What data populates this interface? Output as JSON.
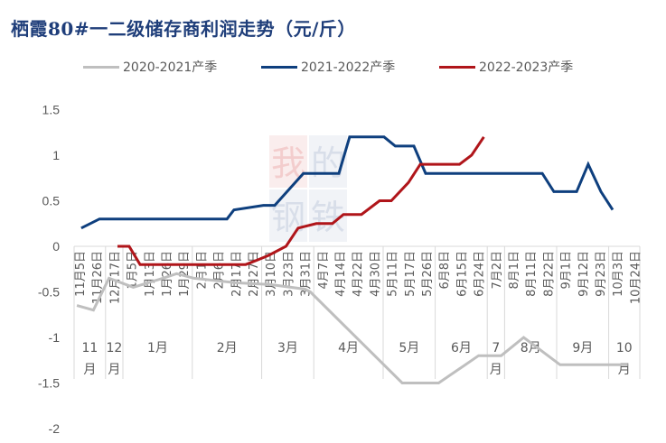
{
  "title": "栖霞80#一二级储存商利润走势（元/斤）",
  "legend": [
    {
      "label": "2020-2021产季",
      "color": "#bfbfbf"
    },
    {
      "label": "2021-2022产季",
      "color": "#0e3f7e"
    },
    {
      "label": "2022-2023产季",
      "color": "#b0151a"
    }
  ],
  "chart_data": {
    "type": "line",
    "title": "栖霞80#一二级储存商利润走势（元/斤）",
    "xlabel": "",
    "ylabel": "元/斤",
    "ylim": [
      -2,
      1.5
    ],
    "yticks": [
      1.5,
      1,
      0.5,
      0,
      -0.5,
      -1,
      -1.5,
      -2
    ],
    "ytick_labels": [
      "1.5",
      "1",
      "0.5",
      "0",
      "-0.5",
      "-1",
      "-1.5",
      "-2"
    ],
    "grid": false,
    "legend_position": "top",
    "categories": [
      "11月5日",
      "11月26日",
      "12月17日",
      "1月5日",
      "1月13日",
      "1月26日",
      "1月29日",
      "2月1日",
      "2月6日",
      "2月17日",
      "2月27日",
      "3月10日",
      "3月23日",
      "3月31日",
      "4月7日",
      "4月14日",
      "4月22日",
      "4月30日",
      "5月11日",
      "5月17日",
      "5月26日",
      "6月8日",
      "6月15日",
      "6月24日",
      "7月2日",
      "8月1日",
      "8月11日",
      "8月22日",
      "9月1日",
      "9月12日",
      "9月23日",
      "10月3日",
      "10月24日"
    ],
    "month_groups": [
      {
        "label": "11月",
        "from": 0,
        "to": 1
      },
      {
        "label": "12月",
        "from": 2,
        "to": 2
      },
      {
        "label": "1月",
        "from": 3,
        "to": 6
      },
      {
        "label": "2月",
        "from": 7,
        "to": 10
      },
      {
        "label": "3月",
        "from": 11,
        "to": 13
      },
      {
        "label": "4月",
        "from": 14,
        "to": 17
      },
      {
        "label": "5月",
        "from": 18,
        "to": 20
      },
      {
        "label": "6月",
        "from": 21,
        "to": 23
      },
      {
        "label": "7月",
        "from": 24,
        "to": 24
      },
      {
        "label": "8月",
        "from": 25,
        "to": 27
      },
      {
        "label": "9月",
        "from": 28,
        "to": 30
      },
      {
        "label": "10月",
        "from": 31,
        "to": 32
      }
    ],
    "series": [
      {
        "name": "2020-2021产季",
        "color": "#bfbfbf",
        "points": [
          [
            -0.15,
            -0.65
          ],
          [
            0.8,
            -0.7
          ],
          [
            1.7,
            -0.35
          ],
          [
            3.1,
            -0.45
          ],
          [
            4.8,
            -0.35
          ],
          [
            5.6,
            -0.3
          ],
          [
            6.6,
            -0.35
          ],
          [
            9,
            -0.4
          ],
          [
            11,
            -0.42
          ],
          [
            13,
            -0.47
          ],
          [
            13.3,
            -0.5
          ],
          [
            18.6,
            -1.5
          ],
          [
            20.7,
            -1.5
          ],
          [
            23,
            -1.2
          ],
          [
            24.3,
            -1.2
          ],
          [
            25.6,
            -1.0
          ],
          [
            27.7,
            -1.3
          ],
          [
            31.6,
            -1.3
          ]
        ]
      },
      {
        "name": "2021-2022产季",
        "color": "#0e3f7e",
        "points": [
          [
            0.1,
            0.2
          ],
          [
            1.15,
            0.3
          ],
          [
            8.5,
            0.3
          ],
          [
            8.9,
            0.4
          ],
          [
            10.6,
            0.45
          ],
          [
            11.25,
            0.45
          ],
          [
            12.9,
            0.8
          ],
          [
            14.95,
            0.8
          ],
          [
            15.57,
            1.2
          ],
          [
            17.55,
            1.2
          ],
          [
            18.2,
            1.1
          ],
          [
            19.27,
            1.1
          ],
          [
            19.95,
            0.8
          ],
          [
            26.67,
            0.8
          ],
          [
            27.34,
            0.6
          ],
          [
            28.65,
            0.6
          ],
          [
            29.32,
            0.9
          ],
          [
            30.05,
            0.6
          ],
          [
            30.73,
            0.4
          ]
        ]
      },
      {
        "name": "2022-2023产季",
        "color": "#b0151a",
        "points": [
          [
            2.19,
            0
          ],
          [
            2.86,
            0
          ],
          [
            3.49,
            -0.2
          ],
          [
            9.58,
            -0.2
          ],
          [
            10.26,
            -0.15
          ],
          [
            10.89,
            -0.1
          ],
          [
            11.9,
            0
          ],
          [
            12.6,
            0.2
          ],
          [
            13.65,
            0.25
          ],
          [
            14.58,
            0.25
          ],
          [
            15.21,
            0.35
          ],
          [
            16.25,
            0.35
          ],
          [
            17.29,
            0.5
          ],
          [
            17.97,
            0.5
          ],
          [
            18.96,
            0.7
          ],
          [
            19.64,
            0.9
          ],
          [
            21.9,
            0.9
          ],
          [
            22.6,
            1.0
          ],
          [
            23.3,
            1.2
          ]
        ]
      }
    ]
  },
  "watermark": {
    "text": [
      "我",
      "的",
      "钢",
      "铁"
    ]
  }
}
